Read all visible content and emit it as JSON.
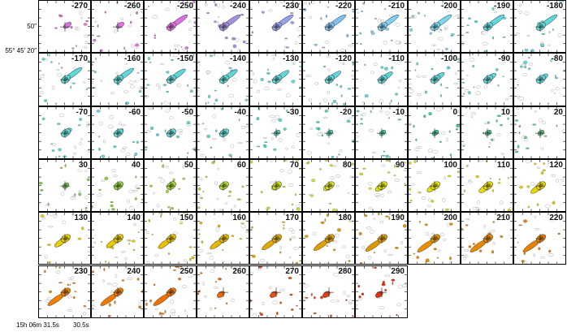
{
  "axes": {
    "y_ticks": [
      "50″",
      "55° 45′ 20″"
    ],
    "x_ticks": [
      "15h 06m 31.5s",
      "30.5s"
    ]
  },
  "panels": [
    {
      "label": "-270",
      "color": "#e070e0"
    },
    {
      "label": "-260",
      "color": "#e070e0"
    },
    {
      "label": "-250",
      "color": "#e070e0"
    },
    {
      "label": "-240",
      "color": "#a890e0"
    },
    {
      "label": "-230",
      "color": "#98a0e8"
    },
    {
      "label": "-220",
      "color": "#80c0f0"
    },
    {
      "label": "-210",
      "color": "#80d0f0"
    },
    {
      "label": "-200",
      "color": "#78d8f0"
    },
    {
      "label": "-190",
      "color": "#60d8e0"
    },
    {
      "label": "-180",
      "color": "#60d8d8"
    },
    {
      "label": "-170",
      "color": "#60d8d8"
    },
    {
      "label": "-160",
      "color": "#60d8d8"
    },
    {
      "label": "-150",
      "color": "#60d8d8"
    },
    {
      "label": "-140",
      "color": "#60d8d8"
    },
    {
      "label": "-130",
      "color": "#60d8d8"
    },
    {
      "label": "-120",
      "color": "#60d8d8"
    },
    {
      "label": "-110",
      "color": "#60d8d8"
    },
    {
      "label": "-100",
      "color": "#60d8d8"
    },
    {
      "label": "-90",
      "color": "#60d8d8"
    },
    {
      "label": "-80",
      "color": "#60d8d8"
    },
    {
      "label": "-70",
      "color": "#60d8d8"
    },
    {
      "label": "-60",
      "color": "#60d8d8"
    },
    {
      "label": "-50",
      "color": "#60d8d0"
    },
    {
      "label": "-40",
      "color": "#60d8d0"
    },
    {
      "label": "-30",
      "color": "#58d8c8"
    },
    {
      "label": "-20",
      "color": "#50d8c0"
    },
    {
      "label": "-10",
      "color": "#48d8b0"
    },
    {
      "label": "0",
      "color": "#40d0a0"
    },
    {
      "label": "10",
      "color": "#50d090"
    },
    {
      "label": "20",
      "color": "#60d080"
    },
    {
      "label": "30",
      "color": "#80d050"
    },
    {
      "label": "40",
      "color": "#90d040"
    },
    {
      "label": "50",
      "color": "#a0d838"
    },
    {
      "label": "60",
      "color": "#b0dc30"
    },
    {
      "label": "70",
      "color": "#d0e020"
    },
    {
      "label": "80",
      "color": "#d8e020"
    },
    {
      "label": "90",
      "color": "#e0e010"
    },
    {
      "label": "100",
      "color": "#e8e000"
    },
    {
      "label": "110",
      "color": "#e8dc00"
    },
    {
      "label": "120",
      "color": "#e8d800"
    },
    {
      "label": "130",
      "color": "#e8d000"
    },
    {
      "label": "140",
      "color": "#e8c800"
    },
    {
      "label": "150",
      "color": "#e8c000"
    },
    {
      "label": "160",
      "color": "#e8b800"
    },
    {
      "label": "170",
      "color": "#e0a800"
    },
    {
      "label": "180",
      "color": "#e0a000"
    },
    {
      "label": "190",
      "color": "#e09800"
    },
    {
      "label": "200",
      "color": "#e89000"
    },
    {
      "label": "210",
      "color": "#e88800"
    },
    {
      "label": "220",
      "color": "#e88000"
    },
    {
      "label": "230",
      "color": "#f08000"
    },
    {
      "label": "240",
      "color": "#f07800"
    },
    {
      "label": "250",
      "color": "#f07000"
    },
    {
      "label": "260",
      "color": "#f06800"
    },
    {
      "label": "270",
      "color": "#e85010"
    },
    {
      "label": "280",
      "color": "#e04010"
    },
    {
      "label": "290",
      "color": "#e03010"
    }
  ]
}
